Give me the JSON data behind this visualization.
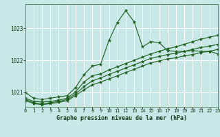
{
  "title": "Graphe pression niveau de la mer (hPa)",
  "bg_color": "#c8e8e8",
  "grid_color": "#ffffff",
  "line_color": "#1a5c1a",
  "xlim": [
    0,
    23
  ],
  "ylim": [
    1020.55,
    1023.75
  ],
  "yticks": [
    1021,
    1022,
    1023
  ],
  "xticks": [
    0,
    1,
    2,
    3,
    4,
    5,
    6,
    7,
    8,
    9,
    10,
    11,
    12,
    13,
    14,
    15,
    16,
    17,
    18,
    19,
    20,
    21,
    22,
    23
  ],
  "series": [
    [
      1021.0,
      1020.82,
      1020.78,
      1020.82,
      1020.86,
      1020.9,
      1021.15,
      1021.55,
      1021.82,
      1021.88,
      1022.62,
      1023.18,
      1023.55,
      1023.2,
      1022.42,
      1022.58,
      1022.55,
      1022.3,
      1022.28,
      1022.28,
      1022.3,
      1022.28,
      1022.28,
      1022.2
    ],
    [
      1020.82,
      1020.72,
      1020.7,
      1020.72,
      1020.76,
      1020.82,
      1021.02,
      1021.32,
      1021.52,
      1021.58,
      1021.7,
      1021.8,
      1021.9,
      1022.0,
      1022.1,
      1022.2,
      1022.28,
      1022.36,
      1022.42,
      1022.5,
      1022.58,
      1022.66,
      1022.72,
      1022.78
    ],
    [
      1020.78,
      1020.68,
      1020.65,
      1020.68,
      1020.72,
      1020.78,
      1020.95,
      1021.18,
      1021.36,
      1021.45,
      1021.56,
      1021.66,
      1021.76,
      1021.86,
      1021.96,
      1022.06,
      1022.12,
      1022.18,
      1022.22,
      1022.28,
      1022.34,
      1022.4,
      1022.44,
      1022.5
    ],
    [
      1020.75,
      1020.65,
      1020.62,
      1020.65,
      1020.69,
      1020.74,
      1020.9,
      1021.08,
      1021.24,
      1021.32,
      1021.42,
      1021.52,
      1021.62,
      1021.72,
      1021.82,
      1021.92,
      1021.98,
      1022.04,
      1022.08,
      1022.14,
      1022.18,
      1022.24,
      1022.28,
      1022.34
    ]
  ]
}
